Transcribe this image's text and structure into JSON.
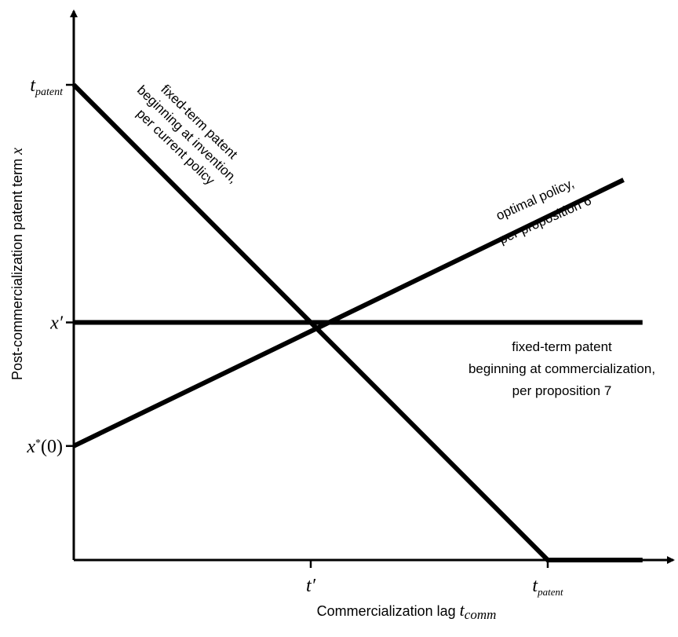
{
  "chart_data": {
    "type": "line",
    "title": "",
    "xlabel_main": "Commercialization lag ",
    "xlabel_var": "t",
    "xlabel_sub": "comm",
    "ylabel_main": "Post-commercialization patent term ",
    "ylabel_var": "x",
    "xlim": [
      0,
      1.2
    ],
    "ylim": [
      0,
      1.15
    ],
    "x_ticks": [
      {
        "value": 0.5,
        "main": "t′",
        "sub": ""
      },
      {
        "value": 1.0,
        "main": "t",
        "sub": "patent"
      }
    ],
    "y_ticks": [
      {
        "value": 1.0,
        "main": "t",
        "sub": "patent",
        "sup": "",
        "suffix": ""
      },
      {
        "value": 0.5,
        "main": "x′",
        "sub": "",
        "sup": "",
        "suffix": ""
      },
      {
        "value": 0.24,
        "main": "x",
        "sub": "",
        "sup": "*",
        "suffix": "(0)"
      }
    ],
    "series": [
      {
        "x": [
          0,
          1.0,
          1.2
        ],
        "y": [
          1.0,
          0,
          0
        ],
        "label_lines": [
          "fixed-term patent",
          "beginning at invention,",
          "per current policy"
        ]
      },
      {
        "x": [
          0,
          1.2
        ],
        "y": [
          0.5,
          0.5
        ],
        "label_lines": [
          "fixed-term patent",
          "beginning at commercialization,",
          "per proposition 7"
        ]
      },
      {
        "x": [
          0,
          1.16
        ],
        "y": [
          0.24,
          0.8
        ],
        "label_lines": [
          "optimal policy,",
          "per proposition 6"
        ]
      }
    ],
    "grid": false,
    "legend": "none"
  }
}
